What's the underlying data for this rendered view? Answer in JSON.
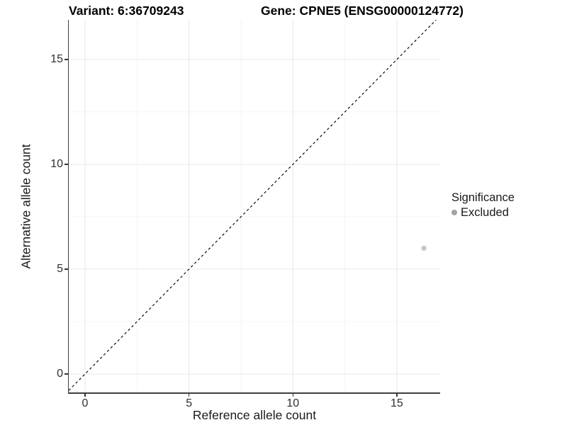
{
  "figure": {
    "title_variant": "Variant: 6:36709243",
    "title_gene": "Gene: CPNE5 (ENSG00000124772)"
  },
  "chart_data": {
    "type": "scatter",
    "title": "Variant: 6:36709243 | Gene: CPNE5 (ENSG00000124772)",
    "xlabel": "Reference allele count",
    "ylabel": "Alternative allele count",
    "xlim": [
      -0.8,
      17.1
    ],
    "ylim": [
      -0.9,
      16.9
    ],
    "x_ticks": [
      0,
      5,
      10,
      15
    ],
    "y_ticks": [
      0,
      5,
      10,
      15
    ],
    "x_minor_ticks": [
      2.5,
      7.5,
      12.5
    ],
    "y_minor_ticks": [
      2.5,
      7.5,
      12.5
    ],
    "grid": "major and minor gridlines, light gray on white",
    "legend_position": "right",
    "series": [
      {
        "name": "Excluded",
        "color": "#c6c6c6",
        "point_radius_px": 3.6,
        "points": [
          {
            "x": 16.3,
            "y": 6
          }
        ]
      }
    ],
    "reference_line": {
      "type": "identity y=x",
      "style": "dashed",
      "color": "#000000"
    },
    "legend": {
      "title": "Significance",
      "items": [
        {
          "label": "Excluded",
          "color": "#a3a3a3"
        }
      ]
    }
  },
  "style": {
    "background": "#ffffff",
    "grid_major_color": "#e9e9e9",
    "grid_minor_color": "#f4f4f4",
    "axis_line_color": "#3f3f3f",
    "tick_label_color": "#303030",
    "title_color": "#000000"
  }
}
